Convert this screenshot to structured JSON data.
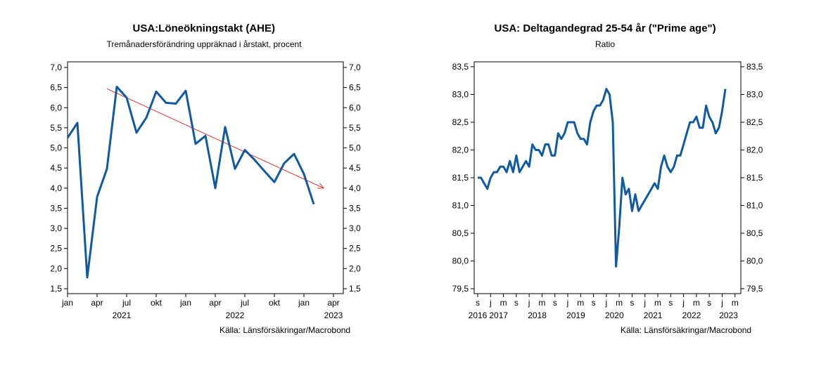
{
  "charts": [
    {
      "title": "USA:Löneökningstakt (AHE)",
      "subtitle": "Tremånadersförändring uppräknad i årstakt, procent",
      "source": "Källa: Länsförsäkringar/Macrobond",
      "line_color": "#0f5aa3",
      "trend_color": "#e8201c"
    },
    {
      "title": "USA: Deltagandegrad 25-54 år (\"Prime age\")",
      "subtitle": "Ratio",
      "source": "Källa: Länsförsäkringar/Macrobond",
      "line_color": "#0f5aa3"
    }
  ],
  "chart_data": [
    {
      "type": "line",
      "title": "USA:Löneökningstakt (AHE)",
      "subtitle": "Tremånadersförändring uppräknad i årstakt, procent",
      "ylim": [
        1.5,
        7.0
      ],
      "yticks": [
        "7,0",
        "6,5",
        "6,0",
        "5,5",
        "5,0",
        "4,5",
        "4,0",
        "3,5",
        "3,0",
        "2,5",
        "2,0",
        "1,5"
      ],
      "ytick_values": [
        7.0,
        6.5,
        6.0,
        5.5,
        5.0,
        4.5,
        4.0,
        3.5,
        3.0,
        2.5,
        2.0,
        1.5
      ],
      "x_month_ticks": [
        "jan",
        "apr",
        "jul",
        "okt",
        "jan",
        "apr",
        "jul",
        "okt",
        "jan",
        "apr"
      ],
      "x_year_labels": [
        "2021",
        "2022",
        "2023"
      ],
      "x": [
        "2021-01",
        "2021-02",
        "2021-03",
        "2021-04",
        "2021-05",
        "2021-06",
        "2021-07",
        "2021-08",
        "2021-09",
        "2021-10",
        "2021-11",
        "2021-12",
        "2022-01",
        "2022-02",
        "2022-03",
        "2022-04",
        "2022-05",
        "2022-06",
        "2022-07",
        "2022-08",
        "2022-09",
        "2022-10",
        "2022-11",
        "2022-12",
        "2023-01",
        "2023-02",
        "2023-03"
      ],
      "series": [
        {
          "values": [
            5.25,
            5.62,
            1.78,
            3.78,
            4.48,
            6.52,
            6.25,
            5.38,
            5.75,
            6.4,
            6.12,
            6.1,
            6.42,
            5.1,
            5.3,
            4.0,
            5.52,
            4.48,
            4.95,
            4.7,
            4.42,
            4.15,
            4.62,
            4.85,
            4.35,
            3.6,
            null
          ]
        }
      ],
      "trend": {
        "from": [
          "2021-05",
          6.47
        ],
        "to": [
          "2023-03",
          4.0
        ]
      },
      "grid": false
    },
    {
      "type": "line",
      "title": "USA: Deltagandegrad 25-54 år (\"Prime age\")",
      "subtitle": "Ratio",
      "ylim": [
        79.5,
        83.5
      ],
      "yticks": [
        "83,5",
        "83,0",
        "82,5",
        "82,0",
        "81,5",
        "81,0",
        "80,5",
        "80,0",
        "79,5"
      ],
      "ytick_values": [
        83.5,
        83.0,
        82.5,
        82.0,
        81.5,
        81.0,
        80.5,
        80.0,
        79.5
      ],
      "x_month_ticks": [
        "s",
        "j",
        "m",
        "s",
        "j",
        "m",
        "s",
        "j",
        "m",
        "s",
        "j",
        "m",
        "s",
        "j",
        "m",
        "s",
        "j",
        "m",
        "s",
        "j",
        "m"
      ],
      "x_year_labels": [
        "2016",
        "2017",
        "2018",
        "2019",
        "2020",
        "2021",
        "2022",
        "2023"
      ],
      "x_start": "2016-09",
      "series": [
        {
          "values": [
            81.5,
            81.5,
            81.4,
            81.3,
            81.5,
            81.6,
            81.6,
            81.7,
            81.7,
            81.6,
            81.8,
            81.6,
            81.9,
            81.6,
            81.7,
            81.8,
            81.7,
            82.1,
            82.0,
            82.0,
            81.9,
            82.1,
            82.1,
            81.9,
            81.9,
            82.3,
            82.2,
            82.3,
            82.5,
            82.5,
            82.5,
            82.3,
            82.2,
            82.2,
            82.1,
            82.5,
            82.7,
            82.8,
            82.8,
            82.9,
            83.1,
            83.0,
            82.5,
            79.9,
            80.6,
            81.5,
            81.2,
            81.3,
            80.9,
            81.2,
            80.9,
            81.0,
            81.1,
            81.2,
            81.3,
            81.4,
            81.3,
            81.7,
            81.9,
            81.7,
            81.6,
            81.7,
            81.9,
            81.9,
            82.1,
            82.3,
            82.5,
            82.5,
            82.6,
            82.4,
            82.4,
            82.8,
            82.6,
            82.5,
            82.3,
            82.4,
            82.7,
            83.1
          ]
        }
      ],
      "grid": false
    }
  ]
}
